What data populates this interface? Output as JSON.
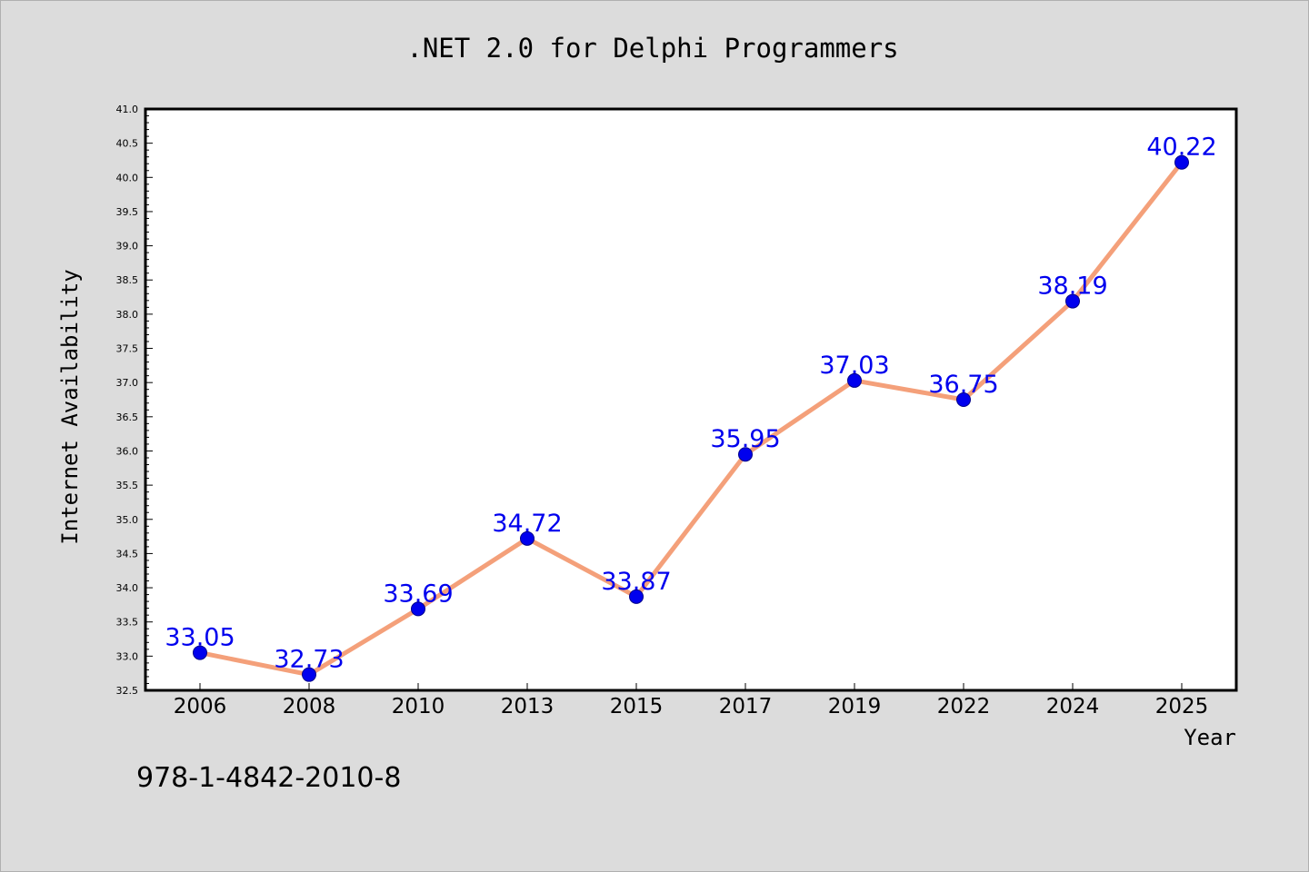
{
  "title": ".NET 2.0 for Delphi Programmers",
  "isbn": "978-1-4842-2010-8",
  "colors": {
    "background": "#dcdcdc",
    "plot_area": "#ffffff",
    "line": "#f4a07a",
    "marker": "#0000ee",
    "data_label": "#0000ee",
    "axis": "#000000"
  },
  "chart_data": {
    "type": "line",
    "title": ".NET 2.0 for Delphi Programmers",
    "xlabel": "Year",
    "ylabel": "Internet Availability",
    "categories": [
      "2006",
      "2008",
      "2010",
      "2013",
      "2015",
      "2017",
      "2019",
      "2022",
      "2024",
      "2025"
    ],
    "values": [
      33.05,
      32.73,
      33.69,
      34.72,
      33.87,
      35.95,
      37.03,
      36.75,
      38.19,
      40.22
    ],
    "data_labels": [
      "33.05",
      "32.73",
      "33.69",
      "34.72",
      "33.87",
      "35.95",
      "37.03",
      "36.75",
      "38.19",
      "40.22"
    ],
    "ylim": [
      32.5,
      41.0
    ],
    "yticks": [
      "32.5",
      "33.0",
      "33.5",
      "34.0",
      "34.5",
      "35.0",
      "35.5",
      "36.0",
      "36.5",
      "37.0",
      "37.5",
      "38.0",
      "38.5",
      "39.0",
      "39.5",
      "40.0",
      "40.5",
      "41.0"
    ],
    "grid": false,
    "legend": "none"
  }
}
